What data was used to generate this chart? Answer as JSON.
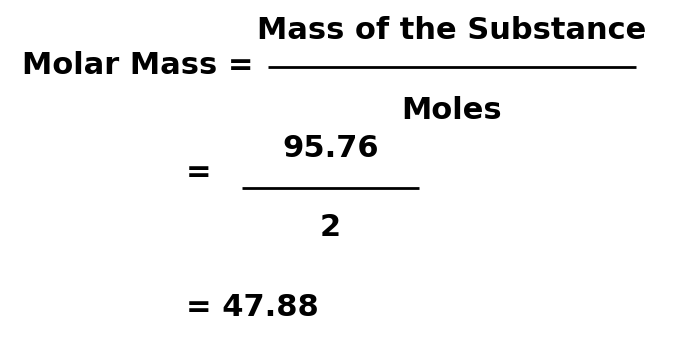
{
  "bg_color": "#ffffff",
  "text_color": "#000000",
  "line1_left": "Molar Mass = ",
  "line1_numerator": "Mass of the Substance",
  "line1_denominator": "Moles",
  "line2_eq": "= ",
  "line2_numerator": "95.76",
  "line2_denominator": "2",
  "line3": "= 47.88",
  "font_size_main": 22,
  "fig_width": 6.88,
  "fig_height": 3.52
}
